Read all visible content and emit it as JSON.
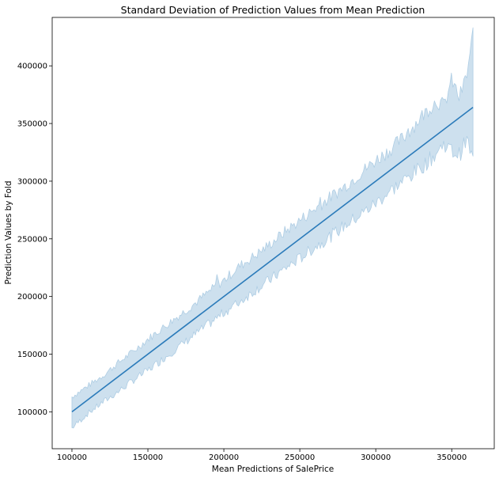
{
  "chart_data": {
    "type": "line",
    "title": "Standard Deviation of Prediction Values from Mean Prediction",
    "xlabel": "Mean Predictions of SalePrice",
    "ylabel": "Prediction Values by Fold",
    "xlim": [
      87000,
      378000
    ],
    "ylim": [
      68000,
      442000
    ],
    "x_ticks": [
      100000,
      150000,
      200000,
      250000,
      300000,
      350000
    ],
    "y_ticks": [
      100000,
      150000,
      200000,
      250000,
      300000,
      350000,
      400000
    ],
    "x_tick_labels": [
      "100000",
      "150000",
      "200000",
      "250000",
      "300000",
      "350000"
    ],
    "y_tick_labels": [
      "100000",
      "150000",
      "200000",
      "250000",
      "300000",
      "350000",
      "400000"
    ],
    "grid": false,
    "series": [
      {
        "kind": "mean-line",
        "x": [
          100000,
          364000
        ],
        "y": [
          100000,
          364000
        ],
        "color": "#2b7bba"
      },
      {
        "kind": "std-band",
        "color": "#aecde4",
        "x": [
          100000,
          110000,
          120000,
          130000,
          140000,
          150000,
          160000,
          170000,
          180000,
          190000,
          200000,
          210000,
          220000,
          230000,
          240000,
          250000,
          260000,
          270000,
          280000,
          290000,
          300000,
          310000,
          320000,
          330000,
          340000,
          345000,
          350000,
          355000,
          360000,
          364000
        ],
        "upper": [
          113000,
          122000,
          131000,
          142000,
          152000,
          163000,
          173000,
          183000,
          193000,
          204000,
          214000,
          226000,
          235000,
          245000,
          256000,
          266000,
          276000,
          286000,
          296000,
          307000,
          318000,
          328000,
          340000,
          356000,
          370000,
          365000,
          388000,
          372000,
          392000,
          428000
        ],
        "lower": [
          86000,
          98000,
          108000,
          117000,
          127000,
          136000,
          146000,
          156000,
          166000,
          176000,
          186000,
          195000,
          205000,
          214000,
          224000,
          233000,
          243000,
          252000,
          262000,
          271000,
          281000,
          292000,
          302000,
          312000,
          324000,
          333000,
          326000,
          323000,
          336000,
          318000
        ]
      }
    ]
  }
}
